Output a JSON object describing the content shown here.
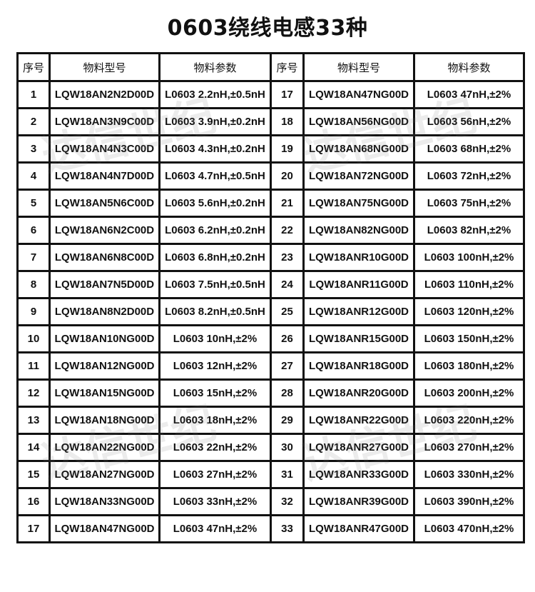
{
  "title": "0603绕线电感33种",
  "watermark": "达信世纪",
  "headers": [
    "序号",
    "物料型号",
    "物料参数",
    "序号",
    "物料型号",
    "物料参数"
  ],
  "rows": [
    [
      [
        "1",
        "LQW18AN2N2D00D",
        "L0603 2.2nH,±0.5nH"
      ],
      [
        "17",
        "LQW18AN47NG00D",
        "L0603 47nH,±2%"
      ]
    ],
    [
      [
        "2",
        "LQW18AN3N9C00D",
        "L0603 3.9nH,±0.2nH"
      ],
      [
        "18",
        "LQW18AN56NG00D",
        "L0603 56nH,±2%"
      ]
    ],
    [
      [
        "3",
        "LQW18AN4N3C00D",
        "L0603 4.3nH,±0.2nH"
      ],
      [
        "19",
        "LQW18AN68NG00D",
        "L0603 68nH,±2%"
      ]
    ],
    [
      [
        "4",
        "LQW18AN4N7D00D",
        "L0603 4.7nH,±0.5nH"
      ],
      [
        "20",
        "LQW18AN72NG00D",
        "L0603 72nH,±2%"
      ]
    ],
    [
      [
        "5",
        "LQW18AN5N6C00D",
        "L0603 5.6nH,±0.2nH"
      ],
      [
        "21",
        "LQW18AN75NG00D",
        "L0603 75nH,±2%"
      ]
    ],
    [
      [
        "6",
        "LQW18AN6N2C00D",
        "L0603 6.2nH,±0.2nH"
      ],
      [
        "22",
        "LQW18AN82NG00D",
        "L0603 82nH,±2%"
      ]
    ],
    [
      [
        "7",
        "LQW18AN6N8C00D",
        "L0603 6.8nH,±0.2nH"
      ],
      [
        "23",
        "LQW18ANR10G00D",
        "L0603 100nH,±2%"
      ]
    ],
    [
      [
        "8",
        "LQW18AN7N5D00D",
        "L0603 7.5nH,±0.5nH"
      ],
      [
        "24",
        "LQW18ANR11G00D",
        "L0603 110nH,±2%"
      ]
    ],
    [
      [
        "9",
        "LQW18AN8N2D00D",
        "L0603 8.2nH,±0.5nH"
      ],
      [
        "25",
        "LQW18ANR12G00D",
        "L0603 120nH,±2%"
      ]
    ],
    [
      [
        "10",
        "LQW18AN10NG00D",
        "L0603 10nH,±2%"
      ],
      [
        "26",
        "LQW18ANR15G00D",
        "L0603 150nH,±2%"
      ]
    ],
    [
      [
        "11",
        "LQW18AN12NG00D",
        "L0603 12nH,±2%"
      ],
      [
        "27",
        "LQW18ANR18G00D",
        "L0603 180nH,±2%"
      ]
    ],
    [
      [
        "12",
        "LQW18AN15NG00D",
        "L0603 15nH,±2%"
      ],
      [
        "28",
        "LQW18ANR20G00D",
        "L0603 200nH,±2%"
      ]
    ],
    [
      [
        "13",
        "LQW18AN18NG00D",
        "L0603 18nH,±2%"
      ],
      [
        "29",
        "LQW18ANR22G00D",
        "L0603 220nH,±2%"
      ]
    ],
    [
      [
        "14",
        "LQW18AN22NG00D",
        "L0603 22nH,±2%"
      ],
      [
        "30",
        "LQW18ANR27G00D",
        "L0603 270nH,±2%"
      ]
    ],
    [
      [
        "15",
        "LQW18AN27NG00D",
        "L0603 27nH,±2%"
      ],
      [
        "31",
        "LQW18ANR33G00D",
        "L0603 330nH,±2%"
      ]
    ],
    [
      [
        "16",
        "LQW18AN33NG00D",
        "L0603 33nH,±2%"
      ],
      [
        "32",
        "LQW18ANR39G00D",
        "L0603 390nH,±2%"
      ]
    ],
    [
      [
        "17",
        "LQW18AN47NG00D",
        "L0603 47nH,±2%"
      ],
      [
        "33",
        "LQW18ANR47G00D",
        "L0603 470nH,±2%"
      ]
    ]
  ]
}
